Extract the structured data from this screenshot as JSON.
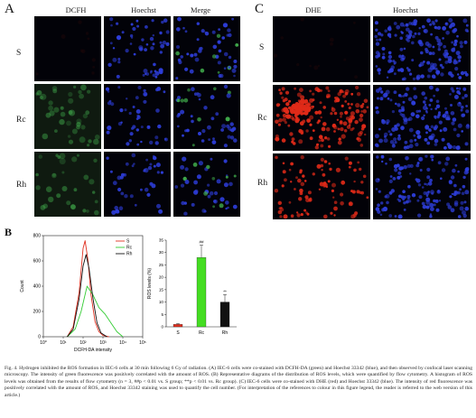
{
  "panels": {
    "A": {
      "letter": "A",
      "columns": [
        "DCFH",
        "Hoechst",
        "Merge"
      ],
      "rows": [
        "S",
        "Rc",
        "Rh"
      ]
    },
    "C": {
      "letter": "C",
      "columns": [
        "DHE",
        "Hoechst"
      ],
      "rows": [
        "S",
        "Rc",
        "Rh"
      ]
    },
    "B": {
      "letter": "B"
    }
  },
  "colors": {
    "green_stain": "#3fa84a",
    "blue_stain": "#2d3dd8",
    "red_stain": "#e02a18"
  },
  "chart_data": [
    {
      "type": "line",
      "xlabel": "DCFH-DA intensity",
      "ylabel": "Count",
      "x_ticks": [
        "10⁰",
        "10¹",
        "10²",
        "10³",
        "10⁴",
        "10⁵"
      ],
      "y_ticks": [
        "0",
        "200",
        "400",
        "600",
        "800"
      ],
      "ylim": [
        0,
        800
      ],
      "series": [
        {
          "name": "S",
          "color": "#e03020",
          "x": [
            1.2,
            1.5,
            1.8,
            2.0,
            2.1,
            2.25,
            2.4,
            2.6,
            2.8,
            3.0,
            3.3
          ],
          "y": [
            0,
            80,
            350,
            700,
            760,
            600,
            330,
            120,
            40,
            10,
            0
          ]
        },
        {
          "name": "Rc",
          "color": "#33cc33",
          "x": [
            1.2,
            1.6,
            1.9,
            2.2,
            2.5,
            2.8,
            3.1,
            3.4,
            3.7,
            4.0
          ],
          "y": [
            0,
            60,
            200,
            400,
            330,
            230,
            180,
            110,
            40,
            0
          ]
        },
        {
          "name": "Rh",
          "color": "#111111",
          "x": [
            1.2,
            1.5,
            1.8,
            2.0,
            2.15,
            2.3,
            2.5,
            2.7,
            2.9,
            3.2
          ],
          "y": [
            0,
            60,
            300,
            560,
            650,
            540,
            300,
            110,
            30,
            0
          ]
        }
      ]
    },
    {
      "type": "bar",
      "ylabel": "ROS levels (%)",
      "categories": [
        "S",
        "Rc",
        "Rh"
      ],
      "values": [
        1,
        28,
        10
      ],
      "errors": [
        0.3,
        5,
        3
      ],
      "colors": [
        "#e03020",
        "#44dd22",
        "#111111"
      ],
      "annotations": [
        "",
        "",
        ""
      ],
      "rh_annotation": "**",
      "rc_annotation": "##",
      "y_ticks": [
        "0",
        "5",
        "10",
        "15",
        "20",
        "25",
        "30",
        "35"
      ],
      "ylim": [
        0,
        35
      ]
    }
  ],
  "caption": "Fig. 4. Hydrogen inhibited the ROS formation in IEC-6 cells at 30 min following 6 Gy of radiation. (A) IEC-6 cells were co-stained with DCFH-DA (green) and Hoechst 33342 (blue), and then observed by confocal laser scanning microscopy. The intensity of green fluorescence was positively correlated with the amount of ROS. (B) Representative diagrams of the distribution of ROS levels, which were quantified by flow cytometry. A histogram of ROS levels was obtained from the results of flow cytometry (n = 3, ##p < 0.01 vs. S group; **p < 0.01 vs. Rc group). (C) IEC-6 cells were co-stained with DHE (red) and Hoechst 33342 (blue). The intensity of red fluorescence was positively correlated with the amount of ROS, and Hoechst 33342 staining was used to quantify the cell number. (For interpretation of the references to colour in this figure legend, the reader is referred to the web version of this article.)"
}
